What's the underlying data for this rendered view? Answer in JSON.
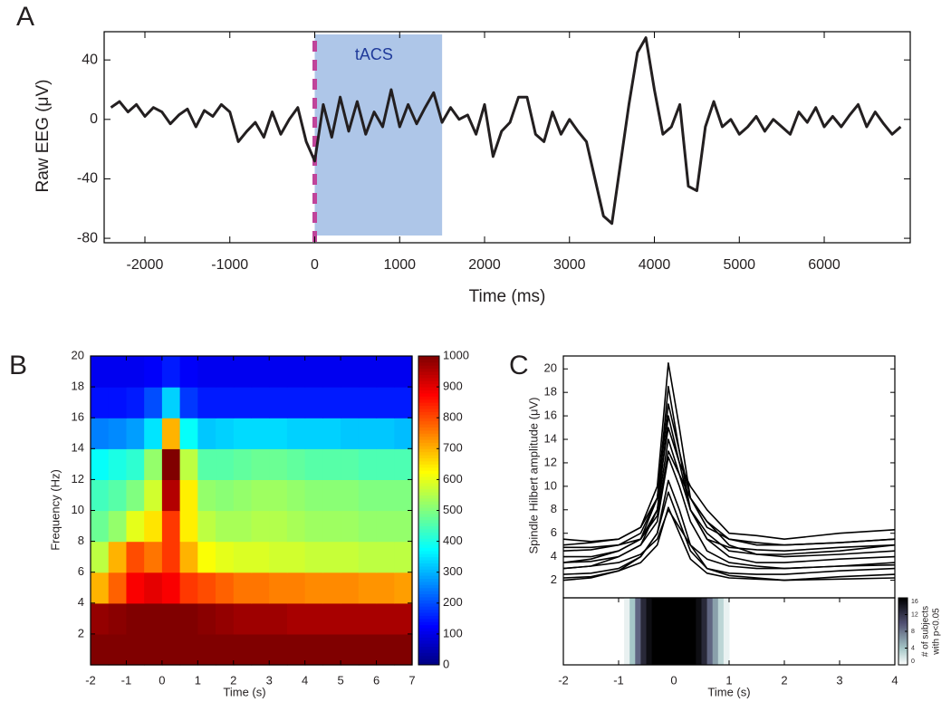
{
  "chart_data": [
    {
      "type": "line",
      "panel_label": "A",
      "xlabel": "Time (ms)",
      "ylabel": "Raw EEG (μV)",
      "color": "#231f20",
      "x": [
        -2400,
        -2300,
        -2200,
        -2100,
        -2000,
        -1900,
        -1800,
        -1700,
        -1600,
        -1500,
        -1400,
        -1300,
        -1200,
        -1100,
        -1000,
        -900,
        -800,
        -700,
        -600,
        -500,
        -400,
        -300,
        -200,
        -100,
        0,
        100,
        200,
        300,
        400,
        500,
        600,
        700,
        800,
        900,
        1000,
        1100,
        1200,
        1300,
        1400,
        1500,
        1600,
        1700,
        1800,
        1900,
        2000,
        2100,
        2200,
        2300,
        2400,
        2500,
        2600,
        2700,
        2800,
        2900,
        3000,
        3100,
        3200,
        3300,
        3400,
        3500,
        3600,
        3700,
        3800,
        3900,
        4000,
        4100,
        4200,
        4300,
        4400,
        4500,
        4600,
        4700,
        4800,
        4900,
        5000,
        5100,
        5200,
        5300,
        5400,
        5500,
        5600,
        5700,
        5800,
        5900,
        6000,
        6100,
        6200,
        6300,
        6400,
        6500,
        6600,
        6700,
        6800,
        6900
      ],
      "values": [
        8,
        12,
        5,
        10,
        2,
        8,
        5,
        -3,
        3,
        7,
        -5,
        6,
        2,
        10,
        5,
        -15,
        -8,
        -2,
        -12,
        5,
        -10,
        0,
        8,
        -15,
        -28,
        10,
        -12,
        15,
        -8,
        12,
        -10,
        5,
        -5,
        20,
        -5,
        10,
        -3,
        8,
        18,
        -2,
        8,
        0,
        3,
        -10,
        10,
        -25,
        -8,
        -2,
        15,
        15,
        -10,
        -15,
        5,
        -10,
        0,
        -8,
        -15,
        -40,
        -65,
        -70,
        -30,
        10,
        45,
        55,
        20,
        -10,
        -5,
        10,
        -45,
        -48,
        -5,
        12,
        -5,
        0,
        -10,
        -5,
        2,
        -8,
        0,
        -5,
        -10,
        5,
        -2,
        8,
        -5,
        2,
        -5,
        3,
        10,
        -5,
        5,
        -3,
        -10,
        -5
      ],
      "xlim": [
        -2480,
        7013
      ],
      "ylim": [
        -83,
        59
      ],
      "xticks": [
        -2000,
        -1000,
        0,
        1000,
        2000,
        3000,
        4000,
        5000,
        6000
      ],
      "yticks": [
        -80,
        -40,
        0,
        40
      ],
      "shaded": {
        "range": [
          0,
          1500
        ],
        "label": "tACS",
        "color": "#aec6e8"
      },
      "marker_line": {
        "x": 0,
        "color": "#c0449a"
      }
    },
    {
      "type": "heatmap",
      "panel_label": "B",
      "xlabel": "Time (s)",
      "ylabel": "Frequency (Hz)",
      "colormap": "jet",
      "xbins": [
        -2,
        -1.5,
        -1,
        -0.5,
        0,
        0.5,
        1,
        1.5,
        2,
        2.5,
        3,
        3.5,
        4,
        4.5,
        5,
        5.5,
        6,
        6.5,
        7
      ],
      "ybins": [
        0,
        2,
        4,
        6,
        8,
        10,
        12,
        14,
        16,
        18,
        20
      ],
      "values": [
        [
          1000,
          1000,
          1000,
          1000,
          1000,
          1000,
          1000,
          1000,
          1000,
          1000,
          1000,
          1000,
          1000,
          1000,
          1000,
          1000,
          1000,
          1000
        ],
        [
          980,
          990,
          1000,
          1000,
          1000,
          1000,
          990,
          980,
          970,
          970,
          970,
          960,
          960,
          960,
          960,
          960,
          960,
          960
        ],
        [
          700,
          780,
          880,
          900,
          880,
          820,
          800,
          780,
          760,
          760,
          750,
          750,
          740,
          740,
          740,
          730,
          730,
          720
        ],
        [
          560,
          700,
          800,
          760,
          820,
          700,
          620,
          600,
          590,
          590,
          580,
          580,
          570,
          570,
          570,
          560,
          560,
          560
        ],
        [
          480,
          520,
          600,
          650,
          820,
          640,
          560,
          540,
          540,
          550,
          550,
          540,
          530,
          530,
          530,
          520,
          520,
          520
        ],
        [
          440,
          460,
          500,
          580,
          950,
          640,
          520,
          510,
          520,
          530,
          530,
          520,
          510,
          510,
          510,
          500,
          500,
          500
        ],
        [
          380,
          400,
          420,
          520,
          1000,
          560,
          460,
          460,
          470,
          480,
          480,
          470,
          460,
          460,
          460,
          450,
          450,
          450
        ],
        [
          250,
          260,
          280,
          350,
          700,
          380,
          320,
          330,
          340,
          340,
          340,
          330,
          330,
          330,
          320,
          320,
          320,
          310
        ],
        [
          140,
          140,
          150,
          200,
          330,
          180,
          150,
          150,
          150,
          150,
          150,
          150,
          150,
          150,
          150,
          150,
          150,
          150
        ],
        [
          110,
          110,
          110,
          120,
          150,
          120,
          110,
          110,
          110,
          110,
          110,
          110,
          110,
          110,
          110,
          110,
          110,
          110
        ]
      ],
      "xlim": [
        -2,
        7
      ],
      "ylim": [
        0,
        20
      ],
      "xticks": [
        -2,
        -1,
        0,
        1,
        2,
        3,
        4,
        5,
        6,
        7
      ],
      "yticks": [
        2,
        4,
        6,
        8,
        10,
        12,
        14,
        16,
        18,
        20
      ],
      "zlim": [
        0,
        1000
      ],
      "zticks": [
        0,
        100,
        200,
        300,
        400,
        500,
        600,
        700,
        800,
        900,
        1000
      ]
    },
    {
      "type": "line",
      "panel_label": "C",
      "ylabel": "Spindle Hilbert amplitude (μV)",
      "color": "#000000",
      "x": [
        -2,
        -1.5,
        -1,
        -0.6,
        -0.3,
        -0.1,
        0.1,
        0.3,
        0.6,
        1,
        1.5,
        2,
        3,
        4
      ],
      "series": [
        {
          "values": [
            5,
            5.2,
            5.5,
            6.5,
            10,
            20.5,
            15,
            9,
            6.5,
            5.5,
            5.2,
            5,
            5.2,
            5.5
          ]
        },
        {
          "values": [
            4.5,
            4.6,
            5,
            6,
            9,
            18.5,
            13,
            8,
            5.5,
            4.8,
            4.6,
            4.5,
            4.8,
            5
          ]
        },
        {
          "values": [
            3.5,
            3.8,
            4.5,
            5.5,
            9,
            17,
            13,
            9,
            7,
            5,
            4.2,
            4,
            4.2,
            4.5
          ]
        },
        {
          "values": [
            4,
            4,
            4.5,
            5.5,
            8,
            16,
            12,
            8,
            6,
            4.5,
            4.2,
            4.2,
            4.5,
            5
          ]
        },
        {
          "values": [
            5.5,
            5.3,
            5.5,
            6.5,
            9,
            15,
            12,
            10,
            8,
            6,
            5.8,
            5.5,
            6,
            6.3
          ]
        },
        {
          "values": [
            3,
            3.2,
            4,
            5,
            8,
            14,
            11,
            8,
            5.5,
            4,
            3.5,
            3.5,
            3.8,
            4
          ]
        },
        {
          "values": [
            4.8,
            4.8,
            5,
            5.5,
            7.5,
            13,
            11,
            9,
            7,
            5.5,
            5,
            5,
            5.2,
            5.5
          ]
        },
        {
          "values": [
            3.5,
            3.6,
            4,
            5,
            7,
            12.5,
            10,
            7,
            4.5,
            3.5,
            3.2,
            3,
            3.2,
            3.5
          ]
        },
        {
          "values": [
            2,
            2.2,
            2.8,
            4,
            6,
            10.5,
            8,
            5,
            3,
            2.4,
            2.2,
            2,
            2.3,
            2.5
          ]
        },
        {
          "values": [
            2.5,
            2.6,
            3,
            4,
            6,
            9.5,
            7,
            4.5,
            3,
            2.6,
            2.5,
            2.5,
            2.8,
            3
          ]
        },
        {
          "values": [
            2.2,
            2.3,
            2.8,
            3.5,
            5,
            8.2,
            6,
            3.8,
            2.6,
            2.2,
            2.1,
            2,
            2.1,
            2.2
          ]
        },
        {
          "values": [
            3,
            3.2,
            3.5,
            4.2,
            5.5,
            8,
            6.5,
            5,
            3.8,
            3.2,
            3,
            3,
            3.2,
            3.3
          ]
        }
      ],
      "xlim": [
        -2,
        4
      ],
      "ylim": [
        0.5,
        21.1
      ],
      "yticks": [
        2,
        4,
        6,
        8,
        10,
        12,
        14,
        16,
        18,
        20
      ]
    },
    {
      "type": "strip",
      "xlabel": "Time (s)",
      "colormap": "bone_r",
      "bins": [
        -0.9,
        -0.8,
        -0.7,
        -0.6,
        -0.5,
        -0.4,
        0.4,
        0.5,
        0.6,
        0.7,
        0.8,
        0.9,
        1.0
      ],
      "values": [
        1,
        4,
        9,
        13,
        15,
        16,
        15,
        13,
        9,
        6,
        3,
        1
      ],
      "xlim": [
        -2,
        4
      ],
      "xticks": [
        -2,
        -1,
        0,
        1,
        2,
        3,
        4
      ],
      "zlim": [
        0,
        16
      ],
      "zticks": [
        0,
        4,
        8,
        12,
        16
      ],
      "zlabel": [
        "# of subjects",
        "with p<0.05"
      ]
    }
  ]
}
